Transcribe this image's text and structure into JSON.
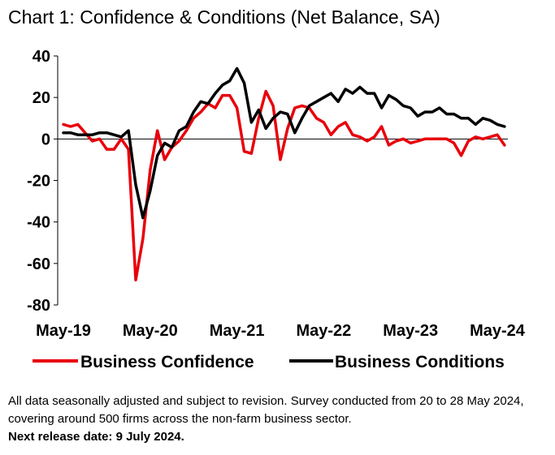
{
  "chart_data": {
    "type": "line",
    "title": "Chart 1: Confidence & Conditions (Net Balance, SA)",
    "ylim": [
      -80,
      40
    ],
    "yticks": [
      40,
      20,
      0,
      -20,
      -40,
      -60,
      -80
    ],
    "xtick_labels": [
      "May-19",
      "May-20",
      "May-21",
      "May-22",
      "May-23",
      "May-24"
    ],
    "x_start": "May-19",
    "frequency": "monthly",
    "series": [
      {
        "name": "Business Confidence",
        "color": "#e8000b",
        "values": [
          7,
          6,
          7,
          3,
          -1,
          0,
          -5,
          -5,
          0,
          -5,
          -68,
          -48,
          -15,
          4,
          -10,
          -4,
          -1,
          4,
          10,
          13,
          17,
          15,
          21,
          21,
          15,
          -6,
          -7,
          10,
          23,
          16,
          -10,
          5,
          15,
          16,
          15,
          10,
          8,
          2,
          6,
          8,
          2,
          1,
          -1,
          1,
          6,
          -3,
          -1,
          0,
          -2,
          -1,
          0,
          0,
          0,
          0,
          -2,
          -8,
          -1,
          1,
          0,
          1,
          2,
          -3
        ]
      },
      {
        "name": "Business Conditions",
        "color": "#000000",
        "values": [
          3,
          3,
          2,
          2,
          2,
          3,
          3,
          2,
          1,
          4,
          -22,
          -38,
          -25,
          -8,
          -2,
          -4,
          4,
          6,
          13,
          18,
          17,
          22,
          26,
          28,
          34,
          27,
          8,
          14,
          5,
          10,
          13,
          12,
          3,
          10,
          16,
          18,
          20,
          22,
          18,
          24,
          22,
          25,
          22,
          22,
          15,
          21,
          19,
          16,
          15,
          11,
          13,
          13,
          15,
          12,
          12,
          10,
          10,
          7,
          10,
          9,
          7,
          6
        ]
      }
    ]
  },
  "legend": {
    "items": [
      {
        "label": "Business Confidence",
        "color": "#e8000b"
      },
      {
        "label": "Business Conditions",
        "color": "#000000"
      }
    ]
  },
  "footnote": {
    "text": "All data seasonally adjusted and subject to revision. Survey conducted from 20 to 28 May 2024, covering around 500 firms across the non-farm business sector.",
    "next_release": "Next release date: 9 July 2024."
  }
}
